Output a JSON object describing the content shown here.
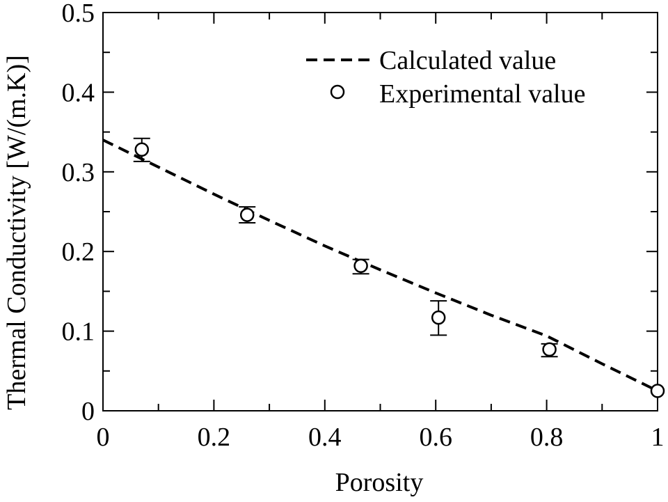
{
  "chart_data": {
    "type": "scatter",
    "xlabel": "Porosity",
    "ylabel": "Thermal Conductivity [W/(m.K)]",
    "xlim": [
      0,
      1
    ],
    "ylim": [
      0,
      0.5
    ],
    "x_ticks": [
      0,
      0.2,
      0.4,
      0.6,
      0.8,
      1
    ],
    "x_tick_labels": [
      "0",
      "0.2",
      "0.4",
      "0.6",
      "0.8",
      "1"
    ],
    "y_ticks": [
      0,
      0.1,
      0.2,
      0.3,
      0.4,
      0.5
    ],
    "y_tick_labels": [
      "0",
      "0.1",
      "0.2",
      "0.3",
      "0.4",
      "0.5"
    ],
    "grid": false,
    "legend_position": "top-right",
    "series": [
      {
        "name": "Calculated value",
        "kind": "line",
        "style": "dashed",
        "color": "#000000",
        "x": [
          0,
          0.1,
          0.2,
          0.3,
          0.4,
          0.5,
          0.6,
          0.7,
          0.8,
          0.9,
          1.0
        ],
        "y": [
          0.34,
          0.306,
          0.272,
          0.239,
          0.207,
          0.177,
          0.148,
          0.12,
          0.094,
          0.059,
          0.025
        ]
      },
      {
        "name": "Experimental value",
        "kind": "scatter",
        "marker": "open-circle",
        "color": "#000000",
        "x": [
          0.07,
          0.26,
          0.465,
          0.605,
          0.805,
          1.0
        ],
        "y": [
          0.328,
          0.246,
          0.182,
          0.117,
          0.077,
          0.025
        ],
        "y_err_low": [
          0.015,
          0.01,
          0.01,
          0.022,
          0.009,
          0
        ],
        "y_err_high": [
          0.014,
          0.01,
          0.008,
          0.021,
          0.007,
          0
        ]
      }
    ]
  }
}
